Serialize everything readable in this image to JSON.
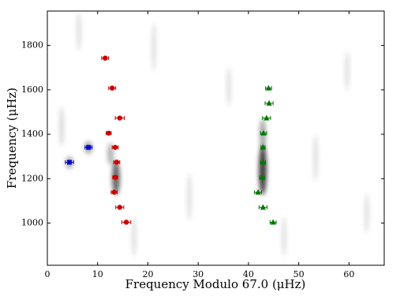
{
  "chart_data": {
    "type": "scatter",
    "xlabel": "Frequency Modulo 67.0 (μHz)",
    "ylabel": "Frequency (μHz)",
    "xlim": [
      0,
      67
    ],
    "xticks": [
      0,
      10,
      20,
      30,
      40,
      50,
      60
    ],
    "ylim": [
      810,
      1955
    ],
    "yticks": [
      1000,
      1200,
      1400,
      1600,
      1800
    ],
    "series": [
      {
        "color": "#cc0000",
        "marker": "circle",
        "x": [
          11.5,
          12.9,
          14.4,
          12.2,
          13.5,
          13.8,
          13.5,
          13.3,
          14.4,
          15.7
        ],
        "values": [
          1743,
          1608,
          1473,
          1405,
          1341,
          1274,
          1206,
          1139,
          1071,
          1004
        ],
        "errors": [
          0.7,
          0.7,
          0.9,
          0.5,
          0.6,
          0.6,
          0.5,
          0.6,
          0.8,
          0.9
        ]
      },
      {
        "color": "#0000cc",
        "marker": "square",
        "x": [
          8.2,
          4.4
        ],
        "values": [
          1341,
          1274
        ],
        "errors": [
          0.7,
          0.8
        ]
      },
      {
        "color": "#007700",
        "marker": "triangle",
        "x": [
          44.0,
          44.1,
          43.6,
          43.0,
          42.9,
          42.9,
          42.7,
          41.9,
          42.9,
          44.9
        ],
        "values": [
          1608,
          1540,
          1473,
          1405,
          1341,
          1274,
          1206,
          1139,
          1071,
          1004
        ],
        "errors": [
          0.6,
          0.8,
          0.8,
          0.6,
          0.4,
          0.5,
          0.5,
          0.7,
          0.8,
          0.6
        ]
      }
    ]
  }
}
